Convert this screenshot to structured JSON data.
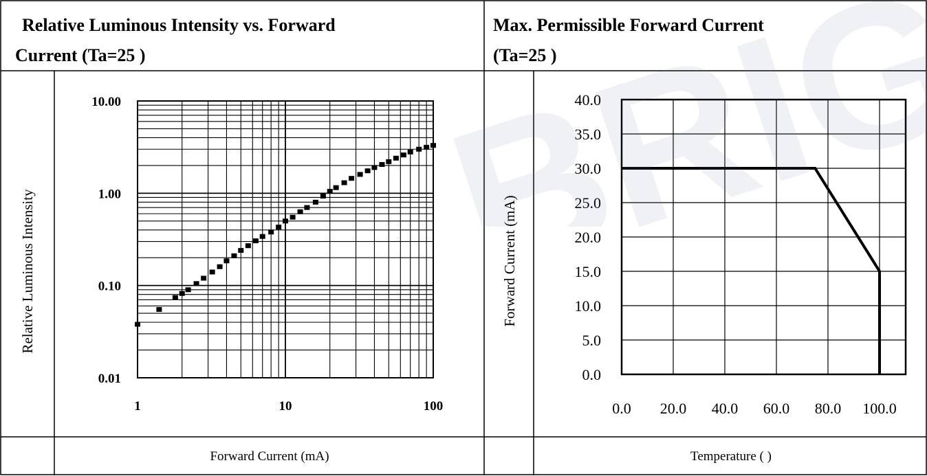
{
  "left_panel": {
    "header_line1": "Relative Luminous Intensity vs. Forward",
    "header_line2": "Current (Ta=25    )"
  },
  "right_panel": {
    "header_line1": "Max. Permissible Forward Current",
    "header_line2": "(Ta=25    )"
  },
  "watermark_text": "BRIGHT",
  "chart_data": [
    {
      "type": "scatter",
      "title": "Relative Luminous Intensity vs. Forward Current (Ta=25    )",
      "xlabel": "Forward Current (mA)",
      "ylabel": "Relative Luminous Intensity",
      "x_scale": "log",
      "y_scale": "log",
      "xlim": [
        1,
        100
      ],
      "ylim": [
        0.01,
        10
      ],
      "x_ticks": [
        "1",
        "10",
        "100"
      ],
      "y_ticks": [
        "10.00",
        "1.00",
        "0.10",
        "0.01"
      ],
      "grid": true,
      "marker_color": "#000000",
      "series": [
        {
          "x": [
            1,
            1.4,
            1.8,
            2,
            2.2,
            2.5,
            2.8,
            3.2,
            3.6,
            4,
            4.5,
            5,
            5.6,
            6.3,
            7,
            8,
            9,
            10,
            11.2,
            12.6,
            14,
            16,
            18,
            20,
            22,
            25,
            28,
            32,
            36,
            40,
            45,
            50,
            56,
            63,
            70,
            80,
            90,
            100
          ],
          "y": [
            0.038,
            0.055,
            0.074,
            0.082,
            0.09,
            0.105,
            0.12,
            0.14,
            0.16,
            0.185,
            0.21,
            0.24,
            0.27,
            0.305,
            0.34,
            0.38,
            0.43,
            0.5,
            0.55,
            0.63,
            0.7,
            0.8,
            0.93,
            1.05,
            1.15,
            1.3,
            1.45,
            1.6,
            1.75,
            1.9,
            2.05,
            2.2,
            2.4,
            2.6,
            2.8,
            3.0,
            3.15,
            3.3
          ]
        }
      ]
    },
    {
      "type": "line",
      "title": "Max. Permissible Forward Current (Ta=25    )",
      "xlabel": "Temperature (    )",
      "ylabel": "Forward Current (mA)",
      "xlim": [
        0,
        100
      ],
      "ylim": [
        0,
        40
      ],
      "x_ticks": [
        "0.0",
        "20.0",
        "40.0",
        "60.0",
        "80.0",
        "100.0"
      ],
      "y_ticks": [
        "40.0",
        "35.0",
        "30.0",
        "25.0",
        "20.0",
        "15.0",
        "10.0",
        "5.0",
        "0.0"
      ],
      "grid": true,
      "line_color": "#000000",
      "series": [
        {
          "x": [
            0,
            75,
            100,
            100
          ],
          "y": [
            30,
            30,
            15,
            0
          ]
        }
      ]
    }
  ]
}
